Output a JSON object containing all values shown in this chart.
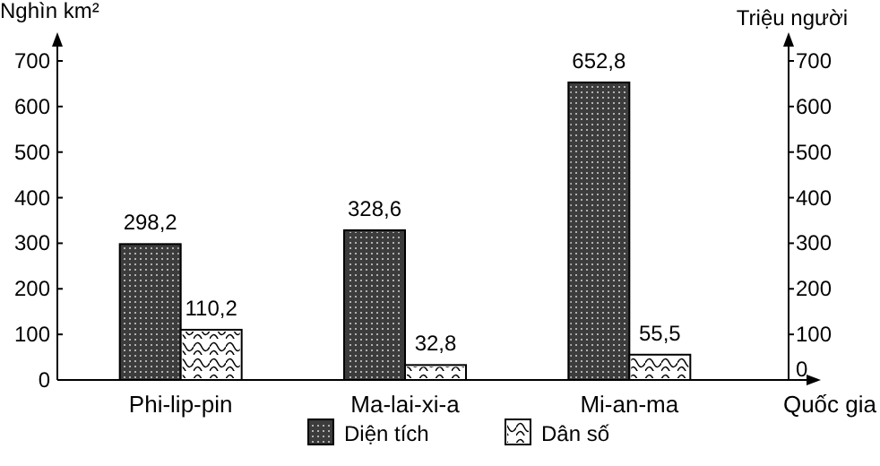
{
  "chart_data": {
    "type": "bar",
    "ylabel": "Nghìn km²",
    "y2label": "Triệu người",
    "xlabel": "Quốc gia",
    "categories": [
      "Phi-lip-pin",
      "Ma-lai-xi-a",
      "Mi-an-ma"
    ],
    "series": [
      {
        "name": "Diện tích",
        "color": "#3c3c3c",
        "values": [
          298.2,
          328.6,
          652.8
        ],
        "value_labels": [
          "298,2",
          "328,6",
          "652,8"
        ]
      },
      {
        "name": "Dân số",
        "color": "#ffffff",
        "values": [
          110.2,
          32.8,
          55.5
        ],
        "value_labels": [
          "110,2",
          "32,8",
          "55,5"
        ],
        "axis": "y2"
      }
    ],
    "ylim": [
      0,
      700
    ],
    "yticks": [
      0,
      100,
      200,
      300,
      400,
      500,
      600,
      700
    ],
    "y2lim": [
      0,
      700
    ],
    "y2ticks": [
      0,
      100,
      200,
      300,
      400,
      500,
      600,
      700
    ],
    "legend": "bottom",
    "grid": false
  }
}
